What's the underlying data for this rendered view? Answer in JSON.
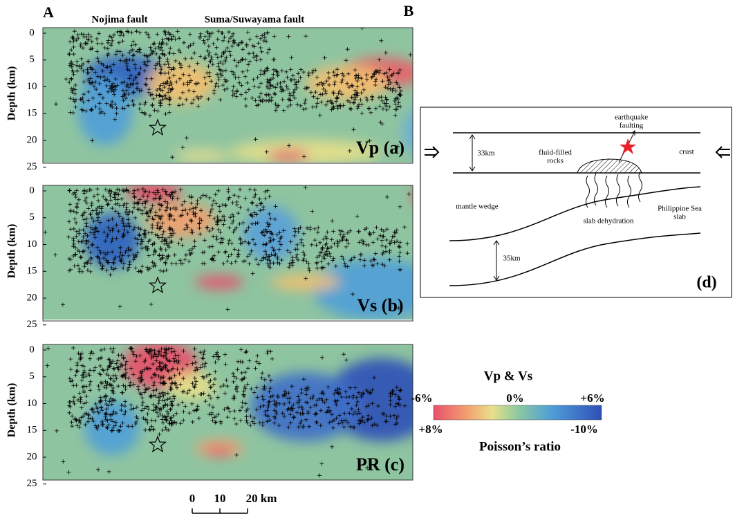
{
  "figure": {
    "part_labels": [
      "A",
      "B"
    ],
    "fault_labels": [
      "Nojima fault",
      "Suma/Suwayama fault"
    ],
    "depth_axis_label": "Depth (km)",
    "depth_ticks": [
      0,
      5,
      10,
      15,
      20,
      25
    ],
    "panels": [
      {
        "label": "Vp (a)"
      },
      {
        "label": "Vs (b)"
      },
      {
        "label": "PR (c)"
      }
    ],
    "scale_bar": [
      "0",
      "10",
      "20 km"
    ],
    "colorbar": {
      "title": "Vp & Vs",
      "top_labels": [
        "-6%",
        "0%",
        "+6%"
      ],
      "bottom_labels": [
        "+8%",
        "-10%"
      ],
      "bottom_title": "Poisson’s ratio"
    },
    "diagram": {
      "earthquake": "earthquake faulting",
      "crust_thickness": "33km",
      "fluid": "fluid-filled rocks",
      "crust": "crust",
      "mantle": "mantle wedge",
      "dehydration": "slab dehydration",
      "slab": "Philippine Sea slab",
      "slab_thickness": "35km",
      "label": "(d)"
    }
  }
}
